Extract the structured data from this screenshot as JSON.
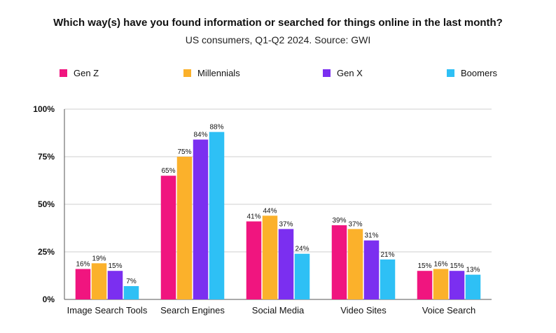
{
  "chart_data": {
    "type": "bar",
    "title": "Which way(s) have you found information or searched for things online in the last month?",
    "subtitle": "US consumers, Q1-Q2 2024. Source: GWI",
    "categories": [
      "Image Search Tools",
      "Search Engines",
      "Social Media",
      "Video Sites",
      "Voice Search"
    ],
    "series": [
      {
        "name": "Gen Z",
        "color": "#f0157f",
        "values": [
          16,
          65,
          41,
          39,
          15
        ]
      },
      {
        "name": "Millennials",
        "color": "#fbb12b",
        "values": [
          19,
          75,
          44,
          37,
          16
        ]
      },
      {
        "name": "Gen X",
        "color": "#7b2ff0",
        "values": [
          15,
          84,
          37,
          31,
          15
        ]
      },
      {
        "name": "Boomers",
        "color": "#2ec0f5",
        "values": [
          7,
          88,
          24,
          21,
          13
        ]
      }
    ],
    "ylim": [
      0,
      100
    ],
    "yticks": [
      0,
      25,
      50,
      75,
      100
    ],
    "ytick_labels": [
      "0%",
      "25%",
      "50%",
      "75%",
      "100%"
    ],
    "value_suffix": "%",
    "grid": true,
    "legend": "top"
  }
}
